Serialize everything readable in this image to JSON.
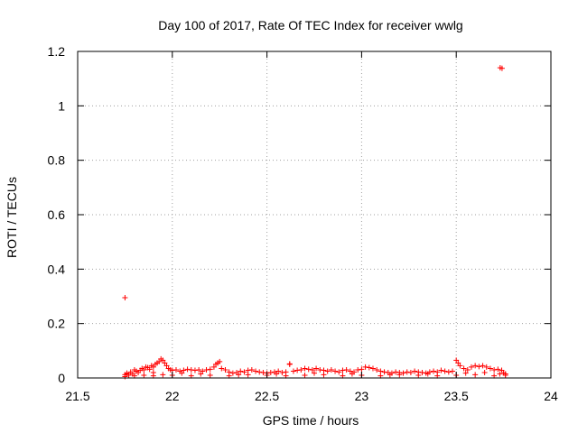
{
  "chart_data": {
    "type": "scatter",
    "title": "Day 100 of 2017, Rate Of TEC Index for receiver wwlg",
    "xlabel": "GPS time / hours",
    "ylabel": "ROTI / TECUs",
    "xlim": [
      21.5,
      24
    ],
    "ylim": [
      0,
      1.2
    ],
    "xticks": [
      21.5,
      22,
      22.5,
      23,
      23.5,
      24
    ],
    "xtick_labels": [
      "21.5",
      "22",
      "22.5",
      "23",
      "23.5",
      "24"
    ],
    "yticks": [
      0,
      0.2,
      0.4,
      0.6,
      0.8,
      1.0,
      1.2
    ],
    "ytick_labels": [
      "0",
      "0.2",
      "0.4",
      "0.6",
      "0.8",
      "1",
      "1.2"
    ],
    "grid": true,
    "marker": "+",
    "color": "#ff0000",
    "series": [
      {
        "name": "ROTI",
        "x": [
          21.75,
          21.76,
          21.77,
          21.78,
          21.79,
          21.8,
          21.81,
          21.82,
          21.83,
          21.84,
          21.85,
          21.86,
          21.87,
          21.88,
          21.89,
          21.9,
          21.91,
          21.92,
          21.93,
          21.94,
          21.95,
          21.96,
          21.97,
          21.98,
          21.99,
          22.0,
          22.02,
          22.04,
          22.06,
          22.08,
          22.1,
          22.12,
          22.14,
          22.16,
          22.18,
          22.2,
          22.22,
          22.23,
          22.24,
          22.25,
          22.26,
          22.28,
          22.3,
          22.32,
          22.34,
          22.36,
          22.38,
          22.4,
          22.42,
          22.44,
          22.46,
          22.48,
          22.5,
          22.52,
          22.54,
          22.56,
          22.58,
          22.6,
          22.62,
          22.64,
          22.66,
          22.68,
          22.7,
          22.72,
          22.74,
          22.76,
          22.78,
          22.8,
          22.82,
          22.84,
          22.86,
          22.88,
          22.9,
          22.92,
          22.94,
          22.96,
          22.98,
          23.0,
          23.02,
          23.04,
          23.06,
          23.08,
          23.1,
          23.12,
          23.14,
          23.16,
          23.18,
          23.2,
          23.22,
          23.24,
          23.26,
          23.28,
          23.3,
          23.32,
          23.34,
          23.36,
          23.38,
          23.4,
          23.42,
          23.44,
          23.46,
          23.48,
          23.5,
          23.51,
          23.52,
          23.54,
          23.56,
          23.58,
          23.6,
          23.62,
          23.64,
          23.66,
          23.68,
          23.7,
          23.72,
          23.74,
          23.75,
          23.76,
          21.75,
          21.8,
          21.85,
          21.9,
          21.95,
          22.0,
          22.1,
          22.2,
          22.3,
          22.4,
          22.5,
          22.6,
          22.7,
          22.8,
          22.9,
          23.0,
          23.1,
          23.2,
          23.3,
          23.4,
          23.5,
          23.6,
          23.7,
          23.76,
          21.76,
          21.9,
          22.05,
          22.15,
          22.35,
          22.55,
          22.75,
          22.95,
          23.15,
          23.35,
          23.55,
          23.65,
          23.73,
          21.75,
          22.62,
          23.732,
          23.742
        ],
        "y": [
          0.012,
          0.018,
          0.01,
          0.022,
          0.015,
          0.03,
          0.025,
          0.02,
          0.028,
          0.035,
          0.03,
          0.04,
          0.038,
          0.032,
          0.045,
          0.04,
          0.05,
          0.055,
          0.06,
          0.07,
          0.065,
          0.055,
          0.045,
          0.035,
          0.03,
          0.028,
          0.03,
          0.025,
          0.028,
          0.032,
          0.03,
          0.028,
          0.03,
          0.025,
          0.03,
          0.032,
          0.04,
          0.05,
          0.055,
          0.06,
          0.035,
          0.03,
          0.022,
          0.018,
          0.02,
          0.025,
          0.022,
          0.028,
          0.03,
          0.025,
          0.022,
          0.02,
          0.018,
          0.02,
          0.022,
          0.025,
          0.02,
          0.022,
          0.05,
          0.025,
          0.028,
          0.03,
          0.035,
          0.032,
          0.03,
          0.035,
          0.03,
          0.028,
          0.025,
          0.03,
          0.025,
          0.022,
          0.028,
          0.03,
          0.025,
          0.022,
          0.03,
          0.032,
          0.04,
          0.038,
          0.035,
          0.03,
          0.025,
          0.022,
          0.02,
          0.018,
          0.022,
          0.02,
          0.018,
          0.022,
          0.02,
          0.025,
          0.022,
          0.02,
          0.018,
          0.022,
          0.025,
          0.022,
          0.028,
          0.025,
          0.022,
          0.025,
          0.065,
          0.055,
          0.045,
          0.035,
          0.03,
          0.04,
          0.045,
          0.042,
          0.045,
          0.04,
          0.035,
          0.03,
          0.032,
          0.028,
          0.02,
          0.015,
          0.005,
          0.008,
          0.01,
          0.008,
          0.012,
          0.01,
          0.008,
          0.01,
          0.008,
          0.012,
          0.01,
          0.008,
          0.01,
          0.012,
          0.008,
          0.01,
          0.008,
          0.012,
          0.01,
          0.008,
          0.01,
          0.012,
          0.008,
          0.01,
          0.015,
          0.02,
          0.018,
          0.015,
          0.012,
          0.015,
          0.018,
          0.015,
          0.012,
          0.015,
          0.018,
          0.02,
          0.015,
          0.295,
          0.052,
          1.14,
          1.138
        ]
      }
    ]
  }
}
